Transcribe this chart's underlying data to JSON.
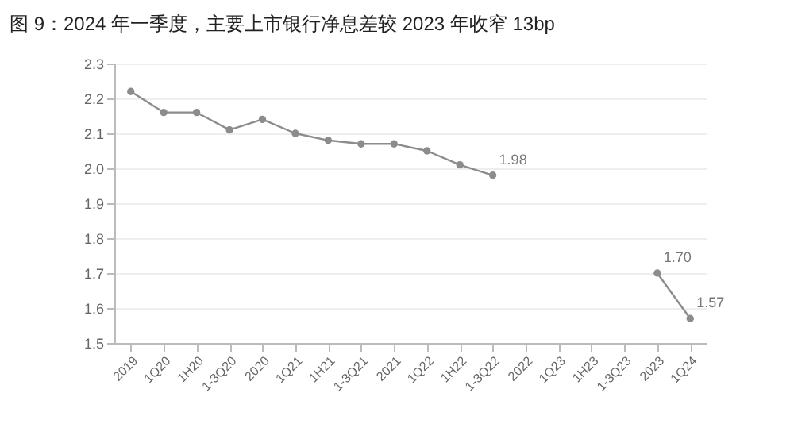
{
  "chart_data": {
    "type": "line",
    "title": "图 9：2024 年一季度，主要上市银行净息差较 2023 年收窄 13bp",
    "categories": [
      "2019",
      "1Q20",
      "1H20",
      "1-3Q20",
      "2020",
      "1Q21",
      "1H21",
      "1-3Q21",
      "2021",
      "1Q22",
      "1H22",
      "1-3Q22",
      "2022",
      "1Q23",
      "1H23",
      "1-3Q23",
      "2023",
      "1Q24"
    ],
    "series": [
      {
        "color": "#8c8c8c",
        "values": [
          2.22,
          2.16,
          2.16,
          2.11,
          2.14,
          2.1,
          2.08,
          2.07,
          2.07,
          2.05,
          2.01,
          1.98,
          null,
          null,
          null,
          null,
          1.7,
          1.57
        ],
        "value_labels": [
          null,
          null,
          null,
          null,
          null,
          null,
          null,
          null,
          null,
          null,
          null,
          "1.98",
          null,
          null,
          null,
          null,
          "1.70",
          "1.57"
        ]
      }
    ],
    "ylim": [
      1.5,
      2.3
    ],
    "yticks": [
      1.5,
      1.6,
      {
        "value": 1.7,
        "label": "1.7"
      },
      {
        "value": 1.8,
        "label": "1.8"
      },
      {
        "value": 1.9,
        "label": "1.9"
      },
      {
        "value": 2,
        "label": "2.0"
      },
      2.1,
      2.2,
      2.3
    ],
    "grid": "y",
    "marker": "circle",
    "line_style": "solid"
  }
}
